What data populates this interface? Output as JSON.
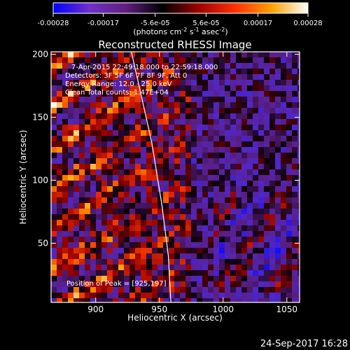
{
  "chart_data": {
    "type": "heatmap",
    "title": "Reconstructed RHESSI Image",
    "xlabel": "Heliocentric X (arcsec)",
    "ylabel": "Heliocentric Y (arcsec)",
    "xlim": [
      865,
      1060
    ],
    "ylim": [
      3,
      202
    ],
    "xticks": [
      "900",
      "950",
      "1000",
      "1050"
    ],
    "xtick_values": [
      900,
      950,
      1000,
      1050
    ],
    "yticks": [
      "50",
      "100",
      "150",
      "200"
    ],
    "ytick_values": [
      50,
      100,
      150,
      200
    ],
    "colorbar": {
      "label_main": "(photons cm",
      "label_sup1": "-2",
      "label_mid": " s",
      "label_sup2": "-1",
      "label_end": " asec",
      "label_sup3": "-2",
      "label_close": ")",
      "vmin": -0.00028,
      "vmax": 0.00028,
      "ticks": [
        "-0.00028",
        "-0.00017",
        "-5.6e-05",
        "5.6e-05",
        "0.00017",
        "0.00028"
      ],
      "tick_values": [
        -0.00028,
        -0.00017,
        -5.6e-05,
        5.6e-05,
        0.00017,
        0.00028
      ],
      "colors": [
        "#0000ff",
        "#7030c8",
        "#601e80",
        "#000000",
        "#a00000",
        "#ff3000",
        "#ffa000",
        "#ffffff"
      ]
    },
    "annotations": [
      "7-Apr-2015 22:49:18.000 to 22:59:18.000",
      "Detectors: 3F 5F 6F 7F 8F 9F, Att 0",
      "Energy Range: 12.0 - 25.0 keV",
      "Clean     Total counts: 1.47E+04"
    ],
    "peak_label": "Position of Peak = [925,197]",
    "peak": [
      925,
      197
    ],
    "limb_curve": [
      [
        928,
        202
      ],
      [
        934,
        175
      ],
      [
        944,
        130
      ],
      [
        952,
        80
      ],
      [
        957,
        40
      ],
      [
        959,
        3
      ]
    ],
    "grid": false
  },
  "footer": {
    "timestamp": "24-Sep-2017 16:28"
  }
}
